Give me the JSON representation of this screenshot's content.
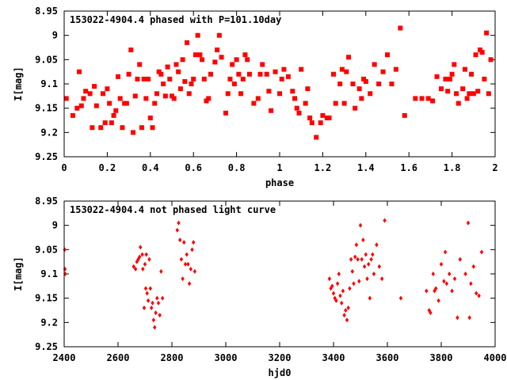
{
  "chart_data": [
    {
      "type": "scatter",
      "title": "153022-4904.4 phased with P=101.10day",
      "xlabel": "phase",
      "ylabel": "I[mag]",
      "xlim": [
        0,
        2
      ],
      "ylim": [
        9.25,
        8.95
      ],
      "y_inverted": true,
      "grid": false,
      "xticks": [
        "0",
        "0.2",
        "0.4",
        "0.6",
        "0.8",
        "1",
        "1.2",
        "1.4",
        "1.6",
        "1.8",
        "2"
      ],
      "yticks": [
        "8.95",
        "9",
        "9.05",
        "9.1",
        "9.15",
        "9.2",
        "9.25"
      ],
      "marker_color": "#ff0000",
      "x": [
        0.01,
        0.04,
        0.06,
        0.07,
        0.08,
        0.09,
        0.1,
        0.12,
        0.13,
        0.14,
        0.15,
        0.17,
        0.18,
        0.19,
        0.2,
        0.21,
        0.22,
        0.23,
        0.24,
        0.25,
        0.26,
        0.27,
        0.28,
        0.29,
        0.3,
        0.31,
        0.32,
        0.33,
        0.34,
        0.35,
        0.36,
        0.37,
        0.38,
        0.39,
        0.4,
        0.41,
        0.42,
        0.43,
        0.44,
        0.45,
        0.46,
        0.47,
        0.48,
        0.49,
        0.5,
        0.51,
        0.52,
        0.53,
        0.54,
        0.55,
        0.56,
        0.57,
        0.58,
        0.59,
        0.6,
        0.61,
        0.62,
        0.63,
        0.64,
        0.65,
        0.66,
        0.67,
        0.68,
        0.7,
        0.71,
        0.72,
        0.73,
        0.75,
        0.76,
        0.77,
        0.78,
        0.79,
        0.8,
        0.81,
        0.82,
        0.83,
        0.84,
        0.85,
        0.86,
        0.88,
        0.9,
        0.91,
        0.92,
        0.94,
        0.95,
        0.96,
        0.98,
        1.0,
        1.01,
        1.02,
        1.04,
        1.06,
        1.07,
        1.08,
        1.09,
        1.1,
        1.12,
        1.13,
        1.14,
        1.15,
        1.17,
        1.19,
        1.2,
        1.22,
        1.23,
        1.25,
        1.26,
        1.28,
        1.29,
        1.3,
        1.31,
        1.32,
        1.34,
        1.35,
        1.37,
        1.38,
        1.39,
        1.4,
        1.42,
        1.44,
        1.46,
        1.48,
        1.5,
        1.52,
        1.54,
        1.56,
        1.58,
        1.63,
        1.66,
        1.69,
        1.71,
        1.73,
        1.75,
        1.77,
        1.78,
        1.79,
        1.8,
        1.81,
        1.82,
        1.83,
        1.85,
        1.86,
        1.87,
        1.88,
        1.89,
        1.9,
        1.91,
        1.92,
        1.93,
        1.94,
        1.95,
        1.96,
        1.97,
        1.98
      ],
      "y": [
        9.13,
        9.165,
        9.15,
        9.075,
        9.145,
        9.13,
        9.115,
        9.12,
        9.19,
        9.105,
        9.145,
        9.19,
        9.12,
        9.18,
        9.11,
        9.14,
        9.18,
        9.165,
        9.155,
        9.085,
        9.13,
        9.19,
        9.14,
        9.14,
        9.08,
        9.03,
        9.2,
        9.125,
        9.09,
        9.06,
        9.19,
        9.09,
        9.13,
        9.09,
        9.17,
        9.19,
        9.14,
        9.12,
        9.075,
        9.08,
        9.1,
        9.125,
        9.065,
        9.09,
        9.125,
        9.13,
        9.06,
        9.075,
        9.11,
        9.05,
        9.095,
        9.015,
        9.12,
        9.1,
        9.09,
        9.04,
        9.0,
        9.04,
        9.05,
        9.09,
        9.135,
        9.13,
        9.08,
        9.055,
        9.03,
        9.0,
        9.045,
        9.16,
        9.12,
        9.09,
        9.06,
        9.1,
        9.05,
        9.08,
        9.12,
        9.09,
        9.04,
        9.05,
        9.08,
        9.14,
        9.13,
        9.08,
        9.06,
        9.08,
        9.115,
        9.155,
        9.075,
        9.12,
        9.09,
        9.07,
        9.085,
        9.115,
        9.13,
        9.15,
        9.16,
        9.07,
        9.14,
        9.11,
        9.17,
        9.18,
        9.21,
        9.18,
        9.165,
        9.17,
        9.17,
        9.08,
        9.14,
        9.1,
        9.07,
        9.14,
        9.075,
        9.045,
        9.1,
        9.15,
        9.11,
        9.13,
        9.09,
        9.095,
        9.12,
        9.06,
        9.1,
        9.075,
        9.04,
        9.1,
        9.07,
        8.985,
        9.165,
        9.13,
        9.13,
        9.13,
        9.135,
        9.085,
        9.11,
        9.09,
        9.115,
        9.09,
        9.08,
        9.06,
        9.12,
        9.14,
        9.11,
        9.07,
        9.13,
        9.12,
        9.08,
        9.12,
        9.04,
        9.115,
        9.03,
        9.035,
        9.09,
        8.995,
        9.12,
        9.05
      ]
    },
    {
      "type": "scatter",
      "title": "153022-4904.4 not phased light curve",
      "xlabel": "hjd0",
      "ylabel": "I[mag]",
      "xlim": [
        2400,
        4000
      ],
      "ylim": [
        9.25,
        8.95
      ],
      "y_inverted": true,
      "grid": false,
      "xticks": [
        "2400",
        "2600",
        "2800",
        "3000",
        "3200",
        "3400",
        "3600",
        "3800",
        "4000"
      ],
      "yticks": [
        "8.95",
        "9",
        "9.05",
        "9.1",
        "9.15",
        "9.2",
        "9.25"
      ],
      "marker_color": "#ff0000",
      "x": [
        2402,
        2403,
        2404,
        2658,
        2665,
        2670,
        2675,
        2680,
        2683,
        2690,
        2692,
        2697,
        2700,
        2703,
        2705,
        2708,
        2712,
        2716,
        2720,
        2724,
        2728,
        2732,
        2736,
        2740,
        2745,
        2750,
        2755,
        2760,
        2765,
        2820,
        2825,
        2830,
        2835,
        2840,
        2845,
        2850,
        2855,
        2860,
        2865,
        2870,
        2875,
        2880,
        2885,
        3385,
        3390,
        3395,
        3400,
        3405,
        3410,
        3415,
        3420,
        3425,
        3430,
        3435,
        3440,
        3445,
        3450,
        3455,
        3460,
        3465,
        3470,
        3475,
        3480,
        3485,
        3490,
        3495,
        3500,
        3505,
        3510,
        3515,
        3520,
        3525,
        3530,
        3535,
        3540,
        3545,
        3550,
        3560,
        3570,
        3580,
        3590,
        3650,
        3745,
        3755,
        3760,
        3770,
        3775,
        3780,
        3790,
        3800,
        3810,
        3815,
        3820,
        3830,
        3840,
        3850,
        3860,
        3870,
        3890,
        3900,
        3905,
        3910,
        3920,
        3930,
        3940,
        3950
      ],
      "y": [
        9.05,
        9.09,
        9.1,
        9.085,
        9.09,
        9.075,
        9.07,
        9.065,
        9.045,
        9.06,
        9.09,
        9.17,
        9.08,
        9.13,
        9.06,
        9.14,
        9.155,
        9.07,
        9.13,
        9.17,
        9.16,
        9.195,
        9.21,
        9.18,
        9.15,
        9.16,
        9.185,
        9.095,
        9.15,
        9.01,
        8.995,
        9.03,
        9.07,
        9.11,
        9.035,
        9.08,
        9.06,
        9.08,
        9.12,
        9.09,
        9.05,
        9.035,
        9.095,
        9.11,
        9.13,
        9.125,
        9.14,
        9.15,
        9.155,
        9.12,
        9.1,
        9.145,
        9.16,
        9.135,
        9.185,
        9.175,
        9.195,
        9.17,
        9.13,
        9.07,
        9.095,
        9.12,
        9.065,
        9.04,
        9.07,
        9.115,
        9.0,
        9.07,
        9.03,
        9.085,
        9.06,
        9.11,
        9.08,
        9.15,
        9.07,
        9.06,
        9.1,
        9.04,
        9.085,
        9.11,
        8.99,
        9.15,
        9.135,
        9.175,
        9.18,
        9.1,
        9.135,
        9.13,
        9.155,
        9.08,
        9.115,
        9.055,
        9.12,
        9.1,
        9.135,
        9.11,
        9.19,
        9.07,
        9.1,
        8.995,
        9.19,
        9.12,
        9.085,
        9.14,
        9.145,
        9.055
      ]
    }
  ]
}
